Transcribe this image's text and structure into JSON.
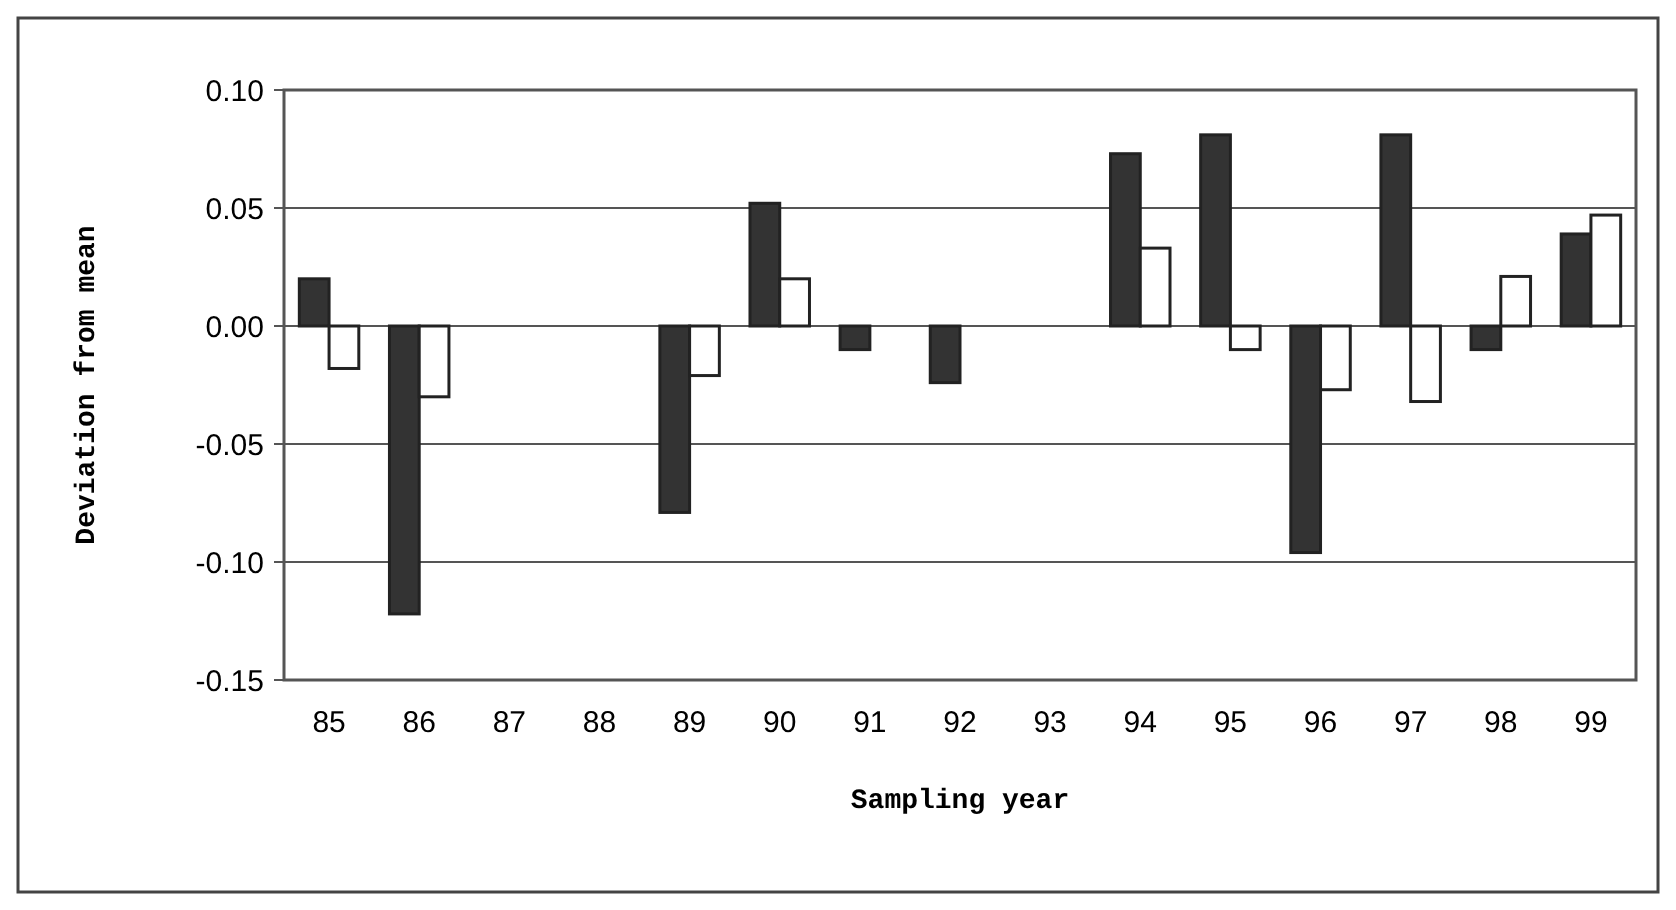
{
  "chart_data": {
    "type": "bar",
    "xlabel": "Sampling year",
    "ylabel": "Deviation from mean",
    "categories": [
      "85",
      "86",
      "87",
      "88",
      "89",
      "90",
      "91",
      "92",
      "93",
      "94",
      "95",
      "96",
      "97",
      "98",
      "99"
    ],
    "series": [
      {
        "color": "#333333",
        "values": [
          0.02,
          -0.122,
          null,
          null,
          -0.079,
          0.052,
          -0.01,
          -0.024,
          null,
          0.073,
          0.081,
          -0.096,
          0.081,
          -0.01,
          0.039
        ]
      },
      {
        "color": "#ffffff",
        "values": [
          -0.018,
          -0.03,
          null,
          null,
          -0.021,
          0.02,
          null,
          null,
          null,
          0.033,
          -0.01,
          -0.027,
          -0.032,
          0.021,
          0.047
        ]
      }
    ],
    "ylim": [
      -0.15,
      0.1
    ],
    "yticks": [
      {
        "value": -0.15,
        "label": "-0.15"
      },
      {
        "value": -0.1,
        "label": "-0.10"
      },
      {
        "value": -0.05,
        "label": "-0.05"
      },
      {
        "value": 0,
        "label": "0.00"
      },
      {
        "value": 0.05,
        "label": "0.05"
      },
      {
        "value": 0.1,
        "label": "0.10"
      }
    ],
    "grid": "y"
  }
}
